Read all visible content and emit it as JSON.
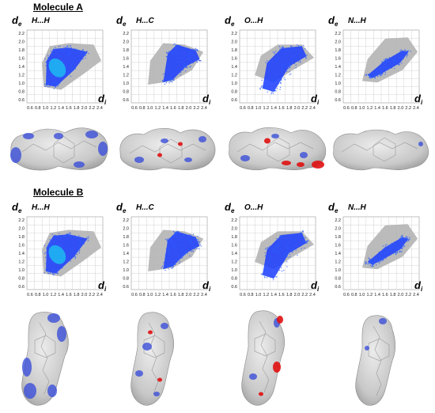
{
  "molecules": [
    {
      "title": "Molecule A",
      "plots": [
        {
          "label": "H...H"
        },
        {
          "label": "H...C"
        },
        {
          "label": "O...H"
        },
        {
          "label": "N...H"
        }
      ]
    },
    {
      "title": "Molecule B",
      "plots": [
        {
          "label": "H...H"
        },
        {
          "label": "H...C"
        },
        {
          "label": "O...H"
        },
        {
          "label": "N...H"
        }
      ]
    }
  ],
  "axes": {
    "y_main": "d",
    "y_sub": "e",
    "x_main": "d",
    "x_sub": "i",
    "y_ticks": [
      "2.2",
      "2.0",
      "1.8",
      "1.6",
      "1.4",
      "1.2",
      "1.0",
      "0.8",
      "0.6"
    ],
    "x_ticks": [
      "0.6",
      "0.8",
      "1.0",
      "1.2",
      "1.4",
      "1.6",
      "1.8",
      "2.0",
      "2.2",
      "2.4"
    ]
  },
  "colors": {
    "grey_cloud": "#b4b4b4",
    "blue": "#1a3cff",
    "cyan": "#19c8f0",
    "surface_grey": "#c8c8c8",
    "surface_blue": "#3b4fd8",
    "surface_red": "#e01010"
  }
}
